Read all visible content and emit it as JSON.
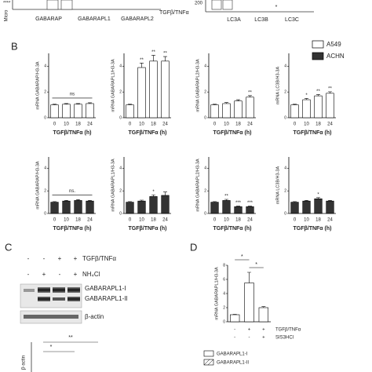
{
  "panel_a": {
    "left_sig": "****",
    "left_ylabel": "Micro",
    "categories": [
      "GABARAP",
      "GABARAPL1",
      "GABARAPL2"
    ],
    "treatment": "TGFβ/TNFα",
    "right_tick": "200",
    "right_categories": [
      "LC3A",
      "LC3B",
      "LC3C"
    ],
    "right_sig": "*"
  },
  "panel_labels": [
    "B",
    "C",
    "D"
  ],
  "legend": [
    {
      "name": "A549",
      "color": "#ffffff"
    },
    {
      "name": "ACHN",
      "color": "#333333"
    }
  ],
  "chart_data": [
    {
      "type": "bar",
      "y_label": "mRNA GABARAP/H3-3A",
      "x_label": "TGFβ/TNFα (h)",
      "categories": [
        "0",
        "10",
        "18",
        "24"
      ],
      "values": [
        1,
        1.05,
        1.05,
        1.1
      ],
      "errors": [
        0.05,
        0.05,
        0.05,
        0.06
      ],
      "color": "#ffffff",
      "ylim": [
        0,
        5
      ],
      "yticks": [
        0,
        2,
        4
      ],
      "annotations": [
        null,
        null,
        null,
        null
      ],
      "bracket_label": "ns"
    },
    {
      "type": "bar",
      "y_label": "mRNA GABARAPL1/H3-3A",
      "x_label": "TGFβ/TNFα (h)",
      "categories": [
        "0",
        "10",
        "18",
        "24"
      ],
      "values": [
        1,
        3.9,
        4.4,
        4.4
      ],
      "errors": [
        0.05,
        0.35,
        0.45,
        0.35
      ],
      "color": "#ffffff",
      "ylim": [
        0,
        5
      ],
      "yticks": [
        0,
        2,
        4
      ],
      "annotations": [
        null,
        "**",
        "**",
        "**"
      ]
    },
    {
      "type": "bar",
      "y_label": "mRNA GABARAPL2/H3-3A",
      "x_label": "TGFβ/TNFα (h)",
      "categories": [
        "0",
        "10",
        "18",
        "24"
      ],
      "values": [
        1,
        1.1,
        1.3,
        1.6
      ],
      "errors": [
        0.05,
        0.08,
        0.1,
        0.12
      ],
      "color": "#ffffff",
      "ylim": [
        0,
        5
      ],
      "yticks": [
        0,
        2,
        4
      ],
      "annotations": [
        null,
        null,
        null,
        "**"
      ]
    },
    {
      "type": "bar",
      "y_label": "mRNA LC3B/H3-3A",
      "x_label": "TGFβ/TNFα (h)",
      "categories": [
        "0",
        "10",
        "18",
        "24"
      ],
      "values": [
        1,
        1.4,
        1.7,
        1.9
      ],
      "errors": [
        0.05,
        0.1,
        0.1,
        0.12
      ],
      "color": "#ffffff",
      "ylim": [
        0,
        5
      ],
      "yticks": [
        0,
        2,
        4
      ],
      "annotations": [
        null,
        "*",
        "**",
        "**"
      ]
    },
    {
      "type": "bar",
      "y_label": "mRNA GABARAP/H3-3A",
      "x_label": "TGFβ/TNFα (h)",
      "categories": [
        "0",
        "10",
        "18",
        "24"
      ],
      "values": [
        1,
        1.1,
        1.15,
        1.1
      ],
      "errors": [
        0.05,
        0.06,
        0.08,
        0.06
      ],
      "color": "#333333",
      "ylim": [
        0,
        5
      ],
      "yticks": [
        0,
        2,
        4
      ],
      "annotations": [
        null,
        null,
        null,
        null
      ],
      "bracket_label": "ns."
    },
    {
      "type": "bar",
      "y_label": "mRNA GABARAPL1/H3-3A",
      "x_label": "TGFβ/TNFα (h)",
      "categories": [
        "0",
        "10",
        "18",
        "24"
      ],
      "values": [
        1,
        1.1,
        1.5,
        1.6
      ],
      "errors": [
        0.05,
        0.08,
        0.15,
        0.3
      ],
      "color": "#333333",
      "ylim": [
        0,
        5
      ],
      "yticks": [
        0,
        2,
        4
      ],
      "annotations": [
        null,
        null,
        "*",
        null
      ]
    },
    {
      "type": "bar",
      "y_label": "mRNA GABARAPL2/H3-3A",
      "x_label": "TGFβ/TNFα (h)",
      "categories": [
        "0",
        "10",
        "18",
        "24"
      ],
      "values": [
        1,
        1.15,
        0.6,
        0.6
      ],
      "errors": [
        0.05,
        0.1,
        0.05,
        0.05
      ],
      "color": "#333333",
      "ylim": [
        0,
        5
      ],
      "yticks": [
        0,
        2,
        4
      ],
      "annotations": [
        null,
        "**",
        "***",
        "***"
      ]
    },
    {
      "type": "bar",
      "y_label": "mRNA LC3B/H3-3A",
      "x_label": "TGFβ/TNFα (h)",
      "categories": [
        "0",
        "10",
        "18",
        "24"
      ],
      "values": [
        1,
        1.1,
        1.3,
        1.1
      ],
      "errors": [
        0.05,
        0.06,
        0.1,
        0.06
      ],
      "color": "#333333",
      "ylim": [
        0,
        5
      ],
      "yticks": [
        0,
        2,
        4
      ],
      "annotations": [
        null,
        null,
        "*",
        null
      ]
    },
    {
      "type": "bar",
      "y_label": "mRNA GABARAPL1/H3-3A",
      "categories": [
        null,
        null,
        null
      ],
      "values": [
        1,
        5.5,
        2
      ],
      "errors": [
        0.05,
        1.5,
        0.15
      ],
      "color": "#ffffff",
      "ylim": [
        0,
        8
      ],
      "yticks": [
        0,
        2,
        4,
        6,
        8
      ],
      "annotations": [
        null,
        null,
        null
      ],
      "rows": [
        {
          "label": "TGFβ/TNFα",
          "signs": [
            "-",
            "+",
            "+"
          ]
        },
        {
          "label": "SIS3HCl",
          "signs": [
            "-",
            "-",
            "+"
          ]
        }
      ],
      "brackets": [
        "*",
        "*"
      ]
    }
  ],
  "blot": {
    "header_rows": [
      {
        "label": "TGFβ/TNFα",
        "signs": [
          "-",
          "-",
          "+",
          "+"
        ]
      },
      {
        "label": "NH₄Cl",
        "signs": [
          "-",
          "+",
          "-",
          "+"
        ]
      }
    ],
    "bands": [
      "GABARAPL1-I",
      "GABARAPL1-II",
      "β-actin"
    ]
  },
  "blot_quant": {
    "y_label": "β-actin",
    "legend": [
      "GABARAPL1-I",
      "GABARAPL1-II"
    ],
    "brackets": [
      "*",
      "**"
    ]
  }
}
